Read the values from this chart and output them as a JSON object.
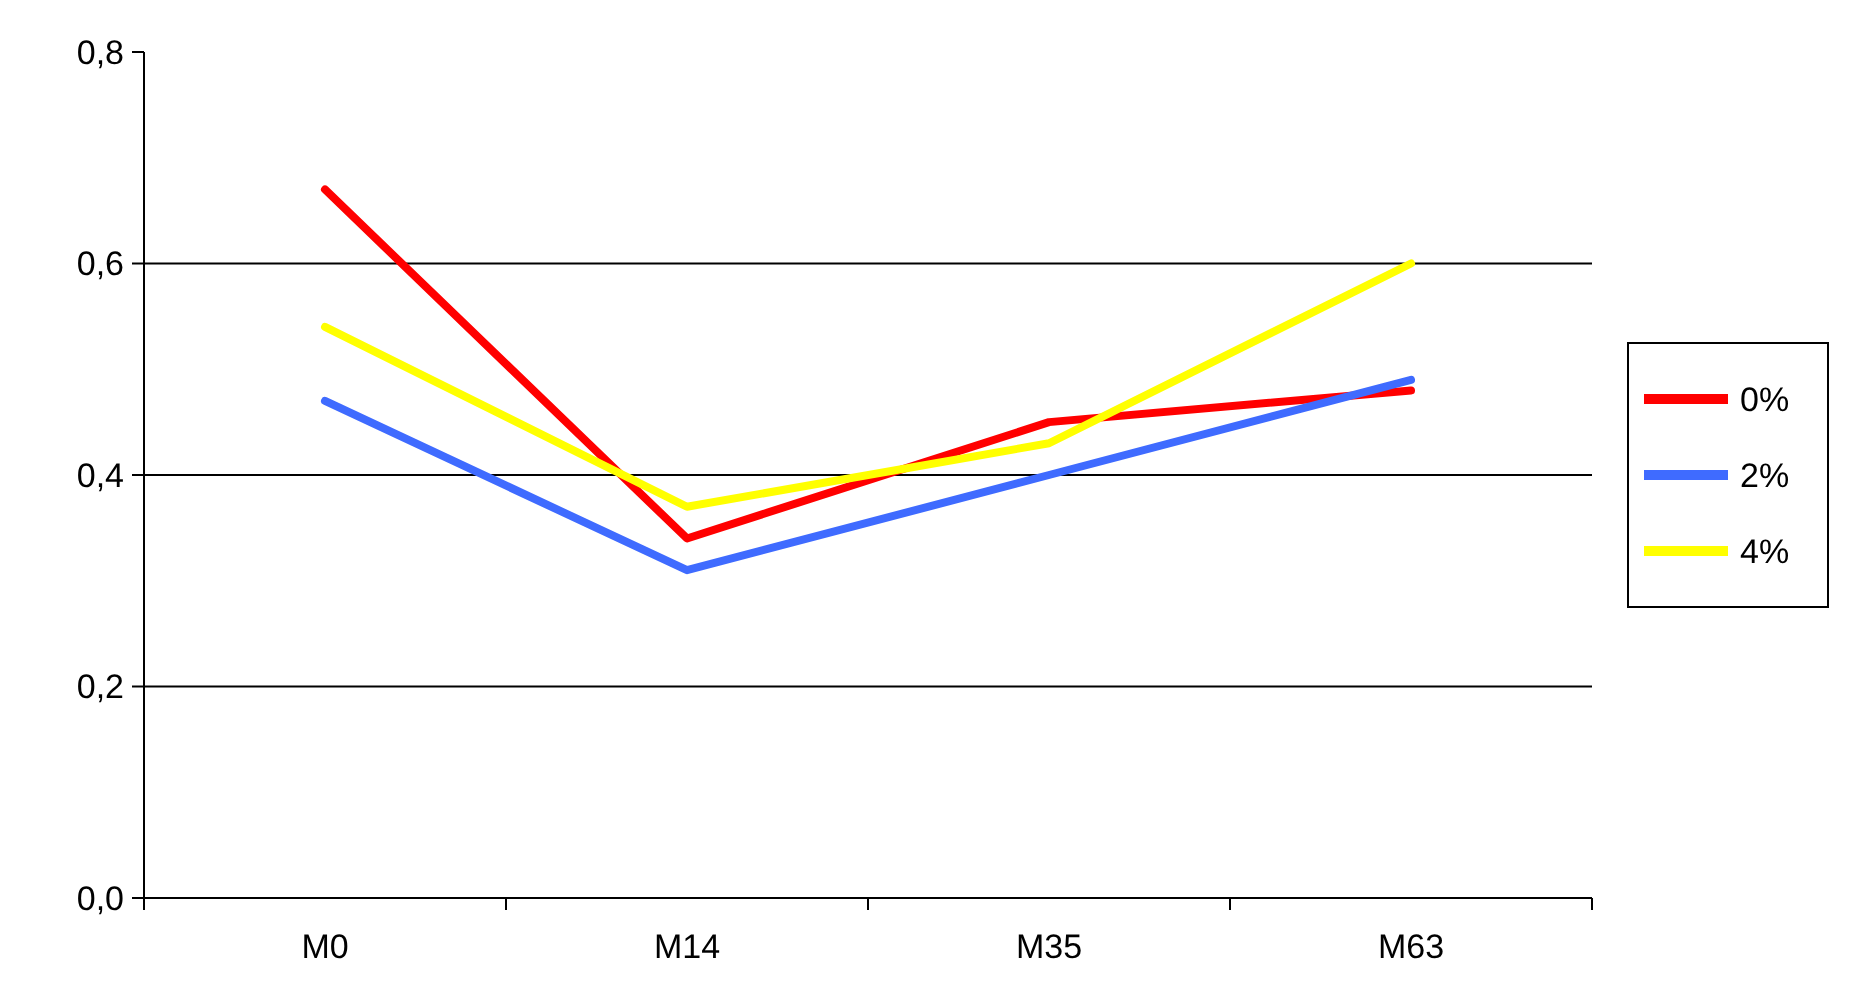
{
  "chart_data": {
    "type": "line",
    "categories": [
      "M0",
      "M14",
      "M35",
      "M63"
    ],
    "series": [
      {
        "name": "0%",
        "color": "#ff0000",
        "values": [
          0.67,
          0.34,
          0.45,
          0.48
        ]
      },
      {
        "name": "2%",
        "color": "#3f6bff",
        "values": [
          0.47,
          0.31,
          0.4,
          0.49
        ]
      },
      {
        "name": "4%",
        "color": "#ffff00",
        "values": [
          0.54,
          0.37,
          0.43,
          0.6
        ]
      }
    ],
    "ylim": [
      0,
      0.8
    ],
    "yticks": [
      {
        "value": 0,
        "label": "0,0"
      },
      {
        "value": 0.2,
        "label": "0,2"
      },
      {
        "value": 0.4,
        "label": "0,4"
      },
      {
        "value": 0.6,
        "label": "0,6"
      },
      {
        "value": 0.8,
        "label": "0,8"
      }
    ],
    "grid": "y",
    "legend": "right",
    "marker": "none",
    "line_style": "solid"
  }
}
